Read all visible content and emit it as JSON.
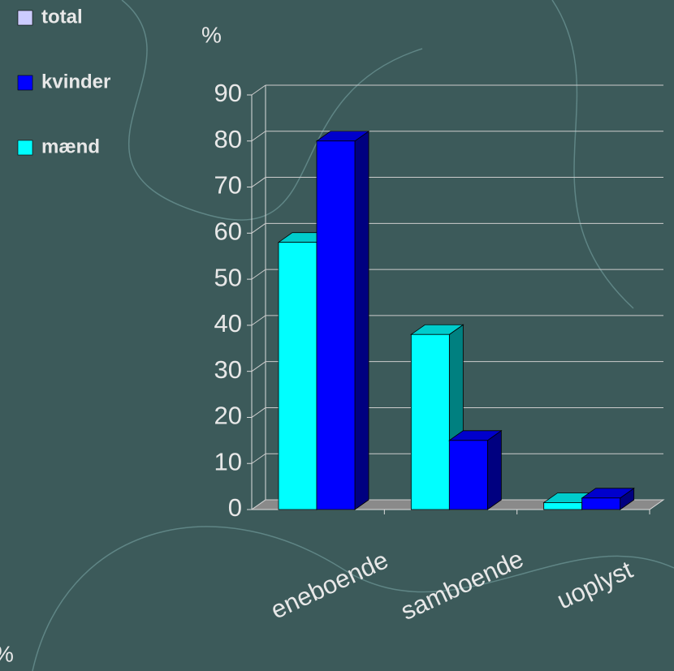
{
  "chart_data": {
    "type": "bar3d",
    "y_label": "%",
    "annotation": "%",
    "categories": [
      "eneboende",
      "samboende",
      "uoplyst"
    ],
    "series": [
      {
        "name": "total",
        "color": "#ccccff",
        "values": [
          null,
          null,
          null
        ]
      },
      {
        "name": "kvinder",
        "color": "#0000ff",
        "values": [
          80,
          15,
          2.5
        ]
      },
      {
        "name": "mænd",
        "color": "#00ffff",
        "values": [
          58,
          38,
          1.5
        ]
      }
    ],
    "ylim": [
      0,
      90
    ],
    "yticks": [
      0,
      10,
      20,
      30,
      40,
      50,
      60,
      70,
      80,
      90
    ],
    "grid": true
  }
}
